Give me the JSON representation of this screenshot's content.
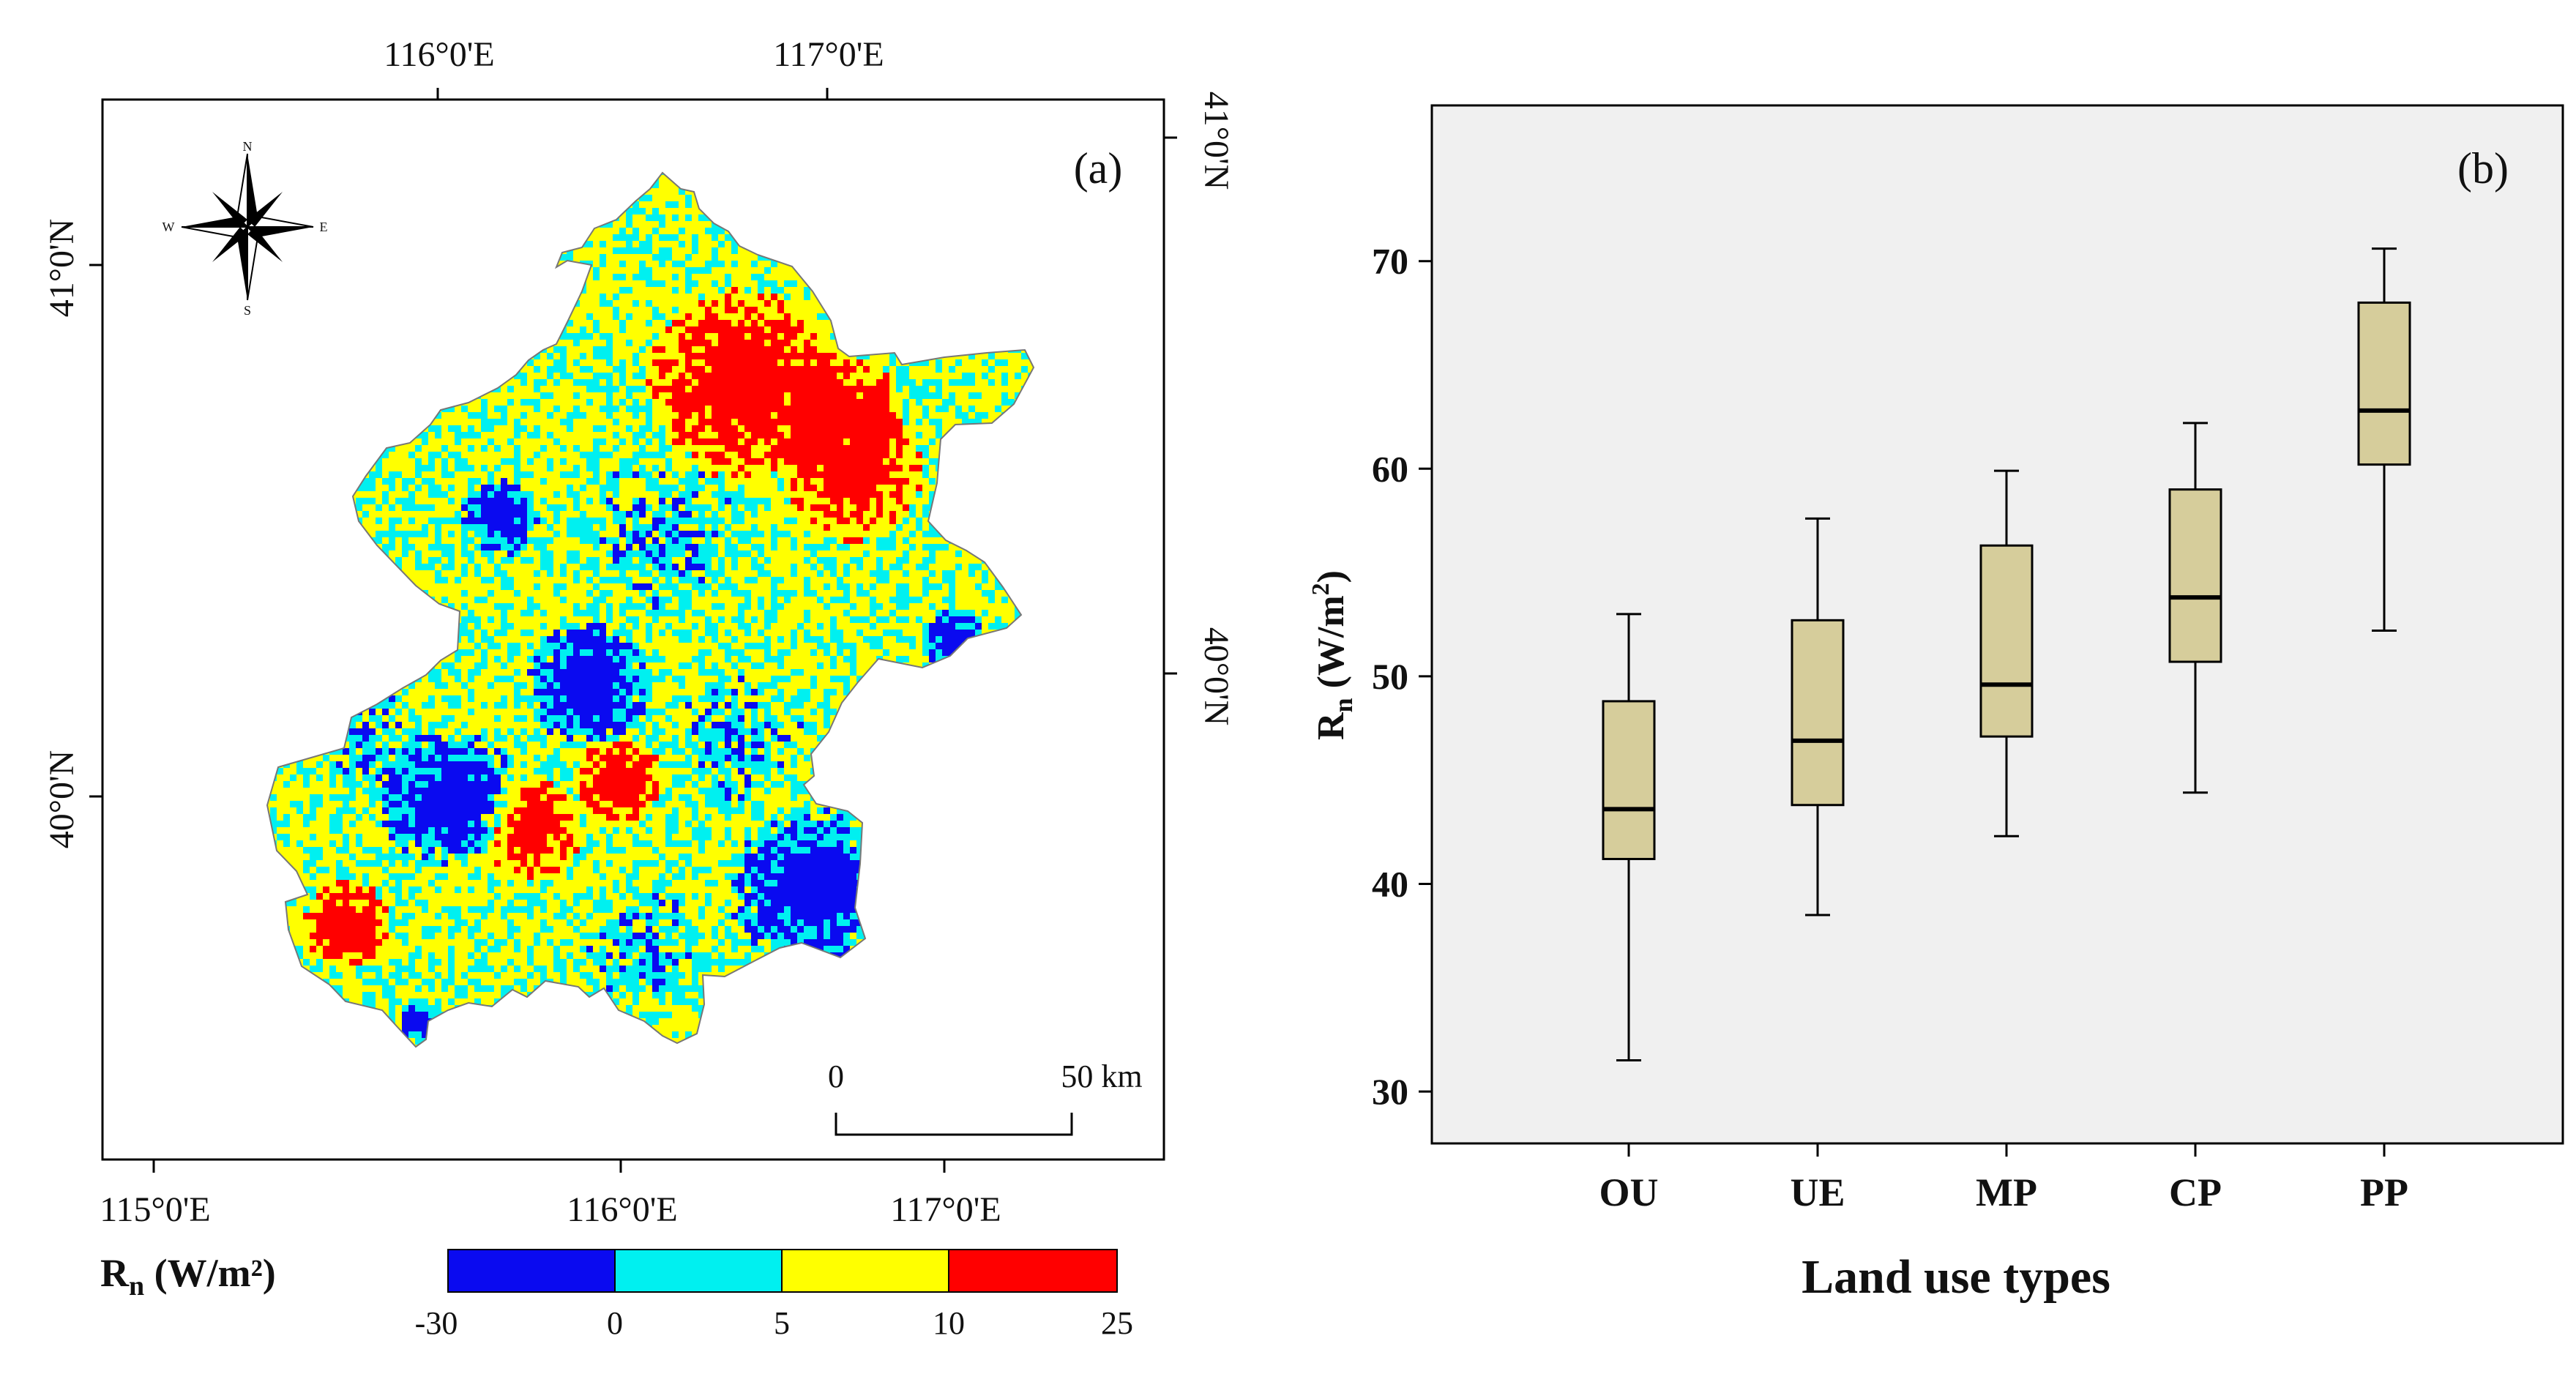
{
  "panel_a": {
    "label": "(a)",
    "top_lon_labels": [
      "116°0'E",
      "117°0'E"
    ],
    "bottom_lon_labels": [
      "115°0'E",
      "116°0'E",
      "117°0'E"
    ],
    "left_lat_labels": [
      "41°0'N",
      "40°0'N"
    ],
    "right_lat_labels": [
      "41°0'N",
      "40°0'N"
    ],
    "scale_bar": {
      "start": "0",
      "end": "50 km"
    },
    "compass": {
      "n": "N",
      "s": "S",
      "e": "E",
      "w": "W"
    },
    "legend": {
      "title_main": "R",
      "title_sub": "n",
      "title_unit": " (W/m²)",
      "ticks": [
        "-30",
        "0",
        "5",
        "10",
        "25"
      ],
      "colors": [
        "#0a0af0",
        "#00f0f0",
        "#ffff00",
        "#ff0000"
      ]
    }
  },
  "chart_data": {
    "type": "box",
    "label": "(b)",
    "categories": [
      "OU",
      "UE",
      "MP",
      "CP",
      "PP"
    ],
    "boxes": [
      {
        "min": 31.5,
        "q1": 41.2,
        "median": 43.6,
        "q3": 48.8,
        "max": 53.0
      },
      {
        "min": 38.5,
        "q1": 43.8,
        "median": 46.9,
        "q3": 52.7,
        "max": 57.6
      },
      {
        "min": 42.3,
        "q1": 47.1,
        "median": 49.6,
        "q3": 56.3,
        "max": 59.9
      },
      {
        "min": 44.4,
        "q1": 50.7,
        "median": 53.8,
        "q3": 59.0,
        "max": 62.2
      },
      {
        "min": 52.2,
        "q1": 60.2,
        "median": 62.8,
        "q3": 68.0,
        "max": 70.6
      }
    ],
    "yticks": [
      "30",
      "40",
      "50",
      "60",
      "70"
    ],
    "ylim": [
      27.5,
      77.5
    ],
    "xlabel": "Land use types",
    "ylabel_main": "R",
    "ylabel_sub": "n",
    "ylabel_unit": " (W/m",
    "ylabel_sup": "2",
    "ylabel_close": ")",
    "box_color": "#d6cd9b",
    "bg_color": "#f0f0f0"
  }
}
